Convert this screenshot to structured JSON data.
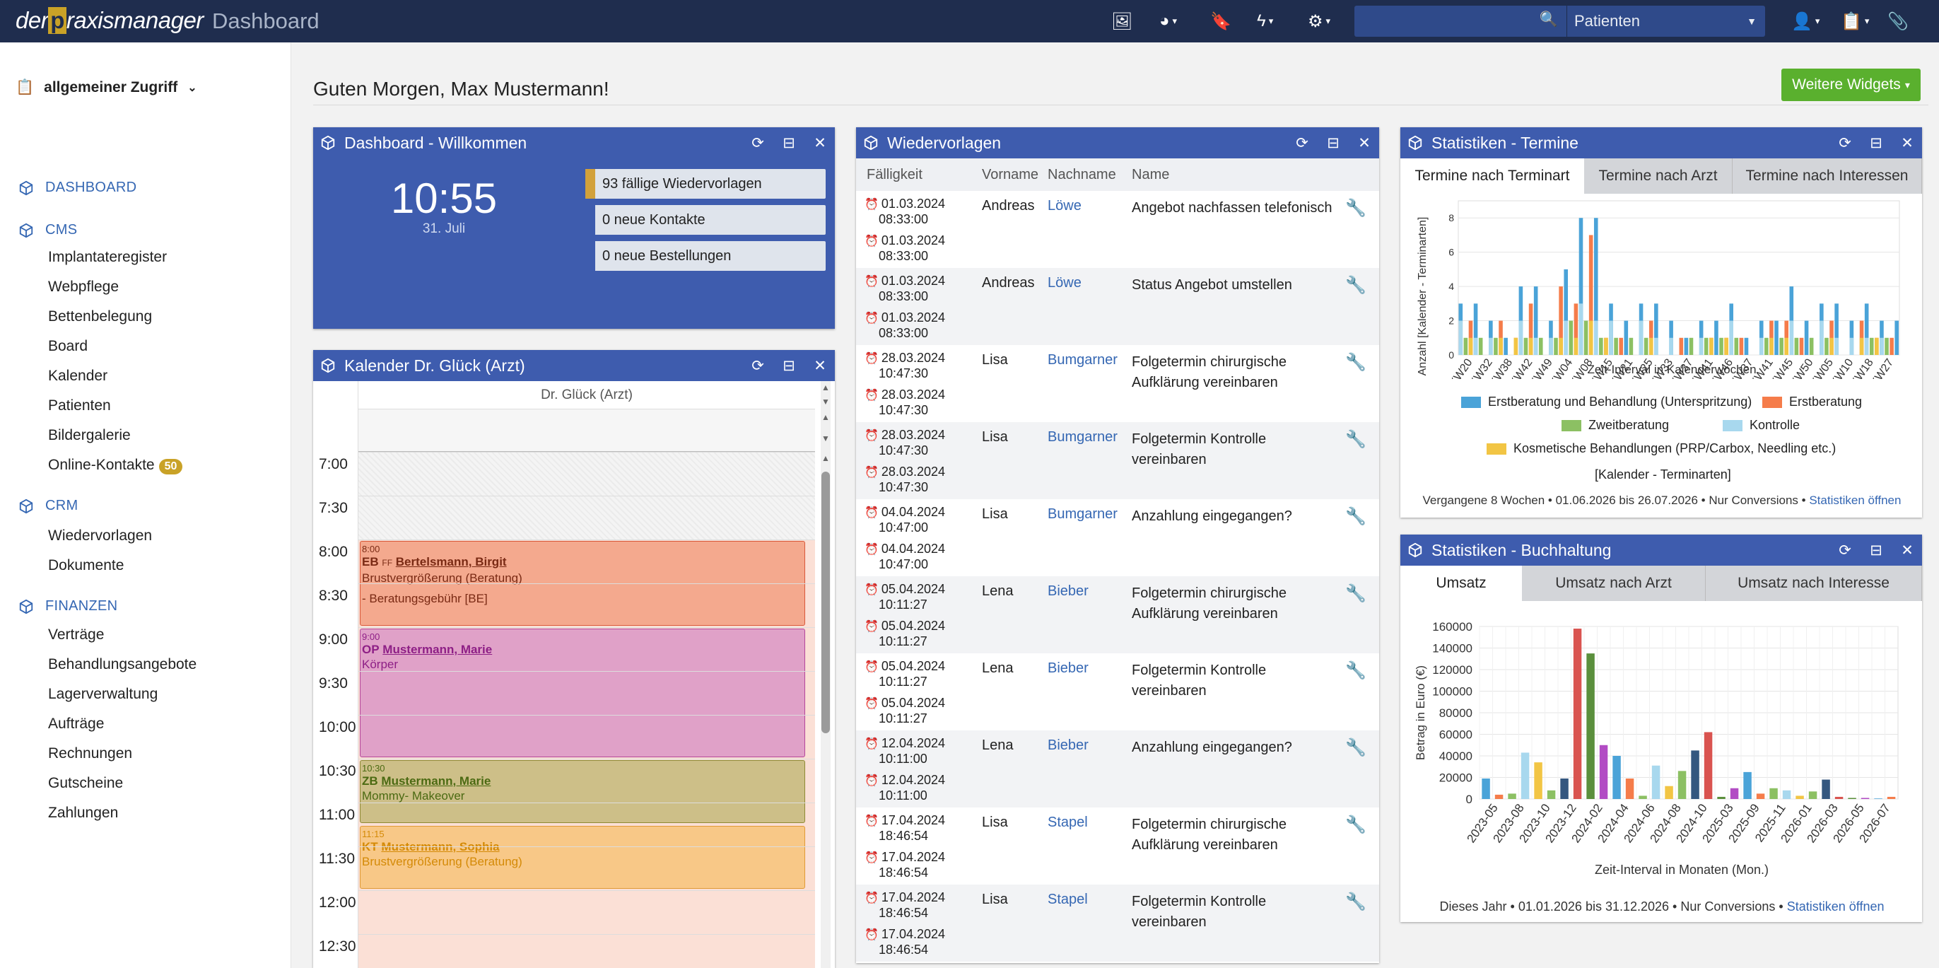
{
  "app": {
    "logo_pre": "der",
    "logo_p": "p",
    "logo_post": "raxismanager",
    "title": "Dashboard"
  },
  "topbar": {
    "search_placeholder": "",
    "select_value": "Patienten",
    "icons": [
      "image-icon",
      "pie-chart-icon",
      "bookmark-icon",
      "bolt-icon",
      "gear-icon",
      "user-icon",
      "clipboard-icon",
      "paperclip-icon"
    ]
  },
  "sidebar": {
    "context": "allgemeiner Zugriff",
    "sections": [
      {
        "label": "DASHBOARD",
        "items": []
      },
      {
        "label": "CMS",
        "items": [
          "Implantateregister",
          "Webpflege",
          "Bettenbelegung",
          "Board",
          "Kalender",
          "Patienten",
          "Bildergalerie",
          "Online-Kontakte"
        ]
      },
      {
        "label": "CRM",
        "items": [
          "Wiedervorlagen",
          "Dokumente"
        ]
      },
      {
        "label": "FINANZEN",
        "items": [
          "Verträge",
          "Behandlungsangebote",
          "Lagerverwaltung",
          "Aufträge",
          "Rechnungen",
          "Gutscheine",
          "Zahlungen"
        ]
      }
    ],
    "online_badge": "50"
  },
  "greeting": "Guten Morgen, Max Mustermann!",
  "more_widgets": "Weitere Widgets",
  "welcome": {
    "title": "Dashboard - Willkommen",
    "time": "10:55",
    "date": "31. Juli",
    "stats": [
      "93 fällige Wiedervorlagen",
      "0 neue Kontakte",
      "0 neue Bestellungen"
    ]
  },
  "calendar": {
    "title": "Kalender Dr. Glück (Arzt)",
    "column": "Dr. Glück (Arzt)",
    "times": [
      "7:00",
      "7:30",
      "8:00",
      "8:30",
      "9:00",
      "9:30",
      "10:00",
      "10:30",
      "11:00",
      "11:30",
      "12:00",
      "12:30"
    ],
    "events": [
      {
        "time": "8:00",
        "code": "EB",
        "flag": "FF",
        "name": "Bertelsmann, Birgit",
        "desc": "Brustvergrößerung (Beratung)",
        "extra": "- Beratungsgebühr [BE]",
        "color": "#f4a98e",
        "border": "#d9593a",
        "text": "#7a2a14"
      },
      {
        "time": "9:00",
        "code": "OP",
        "flag": "",
        "name": "Mustermann, Marie",
        "desc": "Körper",
        "extra": "",
        "color": "#e0a1c8",
        "border": "#b5479a",
        "text": "#8e1f86"
      },
      {
        "time": "10:30",
        "code": "ZB",
        "flag": "",
        "name": "Mustermann, Marie",
        "desc": "Mommy- Makeover",
        "extra": "",
        "color": "#cdbf88",
        "border": "#8f8a35",
        "text": "#4b6a12"
      },
      {
        "time": "11:15",
        "code": "KT",
        "flag": "",
        "name": "Mustermann, Sophia",
        "desc": "Brustvergrößerung (Beratung)",
        "extra": "",
        "color": "#f8c887",
        "border": "#e09a36",
        "text": "#d48a07"
      }
    ]
  },
  "followups": {
    "title": "Wiedervorlagen",
    "columns": [
      "Fälligkeit",
      "Vorname",
      "Nachname",
      "Name"
    ],
    "rows": [
      {
        "d1": "01.03.2024",
        "t1": "08:33:00",
        "d2": "01.03.2024",
        "t2": "08:33:00",
        "first": "Andreas",
        "last": "Löwe",
        "name": "Angebot nachfassen telefonisch"
      },
      {
        "d1": "01.03.2024",
        "t1": "08:33:00",
        "d2": "01.03.2024",
        "t2": "08:33:00",
        "first": "Andreas",
        "last": "Löwe",
        "name": "Status Angebot umstellen"
      },
      {
        "d1": "28.03.2024",
        "t1": "10:47:30",
        "d2": "28.03.2024",
        "t2": "10:47:30",
        "first": "Lisa",
        "last": "Bumgarner",
        "name": "Folgetermin chirurgische Aufklärung vereinbaren"
      },
      {
        "d1": "28.03.2024",
        "t1": "10:47:30",
        "d2": "28.03.2024",
        "t2": "10:47:30",
        "first": "Lisa",
        "last": "Bumgarner",
        "name": "Folgetermin Kontrolle vereinbaren"
      },
      {
        "d1": "04.04.2024",
        "t1": "10:47:00",
        "d2": "04.04.2024",
        "t2": "10:47:00",
        "first": "Lisa",
        "last": "Bumgarner",
        "name": "Anzahlung eingegangen?"
      },
      {
        "d1": "05.04.2024",
        "t1": "10:11:27",
        "d2": "05.04.2024",
        "t2": "10:11:27",
        "first": "Lena",
        "last": "Bieber",
        "name": "Folgetermin chirurgische Aufklärung vereinbaren"
      },
      {
        "d1": "05.04.2024",
        "t1": "10:11:27",
        "d2": "05.04.2024",
        "t2": "10:11:27",
        "first": "Lena",
        "last": "Bieber",
        "name": "Folgetermin Kontrolle vereinbaren"
      },
      {
        "d1": "12.04.2024",
        "t1": "10:11:00",
        "d2": "12.04.2024",
        "t2": "10:11:00",
        "first": "Lena",
        "last": "Bieber",
        "name": "Anzahlung eingegangen?"
      },
      {
        "d1": "17.04.2024",
        "t1": "18:46:54",
        "d2": "17.04.2024",
        "t2": "18:46:54",
        "first": "Lisa",
        "last": "Stapel",
        "name": "Folgetermin chirurgische Aufklärung vereinbaren"
      },
      {
        "d1": "17.04.2024",
        "t1": "18:46:54",
        "d2": "17.04.2024",
        "t2": "18:46:54",
        "first": "Lisa",
        "last": "Stapel",
        "name": "Folgetermin Kontrolle vereinbaren"
      }
    ]
  },
  "stats_appointments": {
    "title": "Statistiken - Termine",
    "tabs": [
      "Termine nach Terminart",
      "Termine nach Arzt",
      "Termine nach Interessen"
    ],
    "footer": "Vergangene 8 Wochen • 01.06.2026 bis 26.07.2026 • Nur Conversions •",
    "footer_link": "Statistiken öffnen",
    "legend_title": "[Kalender - Terminarten]",
    "legend": [
      {
        "name": "Erstberatung und Behandlung (Unterspritzung)",
        "color": "#4aa3d8"
      },
      {
        "name": "Erstberatung",
        "color": "#f57c4a"
      },
      {
        "name": "Zweitberatung",
        "color": "#8cc063"
      },
      {
        "name": "Kontrolle",
        "color": "#a8d8ee"
      },
      {
        "name": "Kosmetische Behandlungen (PRP/Carbox, Needling etc.)",
        "color": "#f2c544"
      }
    ]
  },
  "stats_accounting": {
    "title": "Statistiken - Buchhaltung",
    "tabs": [
      "Umsatz",
      "Umsatz nach Arzt",
      "Umsatz nach Interesse"
    ],
    "footer": "Dieses Jahr • 01.01.2026 bis 31.12.2026 • Nur Conversions •",
    "footer_link": "Statistiken öffnen"
  },
  "chart_data": [
    {
      "type": "bar",
      "title": "",
      "xlabel": "Zeit-Interval in Kalenderwochen",
      "ylabel": "Anzahl [Kalender - Terminarten]",
      "ylim": [
        0,
        9
      ],
      "yticks": [
        0,
        2,
        4,
        6,
        8
      ],
      "categories": [
        "2023 KW20",
        "2023 KW32",
        "2023 KW38",
        "2023 KW42",
        "2023 KW49",
        "2024 KW04",
        "2024 KW08",
        "2024 KW15",
        "2024 KW21",
        "2024 KW25",
        "2024 KW33",
        "2024 KW37",
        "2024 KW41",
        "2024 KW46",
        "2025 KW37",
        "2025 KW41",
        "2025 KW45",
        "2025 KW50",
        "2026 KW05",
        "2026 KW10",
        "2026 KW18",
        "2026 KW27"
      ],
      "series": [
        {
          "name": "Erstberatung und Behandlung (Unterspritzung)",
          "values": [
            3,
            2,
            1,
            4,
            2,
            5,
            8,
            3,
            2,
            3,
            2,
            1,
            2,
            3,
            1,
            2,
            4,
            2,
            3,
            2,
            3,
            2
          ]
        },
        {
          "name": "Erstberatung",
          "values": [
            2,
            1,
            2,
            3,
            1,
            4,
            7,
            2,
            1,
            2,
            1,
            1,
            1,
            2,
            1,
            2,
            3,
            1,
            2,
            1,
            2,
            1
          ]
        },
        {
          "name": "Zweitberatung",
          "values": [
            1,
            1,
            0,
            1,
            1,
            2,
            2,
            1,
            1,
            1,
            0,
            1,
            1,
            1,
            0,
            1,
            1,
            1,
            1,
            0,
            1,
            1
          ]
        },
        {
          "name": "Kontrolle",
          "values": [
            2,
            1,
            1,
            2,
            1,
            3,
            3,
            2,
            1,
            2,
            1,
            1,
            1,
            2,
            1,
            1,
            2,
            1,
            2,
            1,
            2,
            1
          ]
        },
        {
          "name": "Kosmetische Behandlungen (PRP/Carbox, Needling etc.)",
          "values": [
            1,
            0,
            1,
            1,
            0,
            1,
            2,
            1,
            0,
            1,
            0,
            0,
            1,
            1,
            0,
            1,
            1,
            0,
            1,
            0,
            1,
            0
          ]
        }
      ]
    },
    {
      "type": "bar",
      "title": "",
      "xlabel": "Zeit-Interval in Monaten (Mon.)",
      "ylabel": "Betrag in Euro (€)",
      "ylim": [
        0,
        160000
      ],
      "yticks": [
        0,
        20000,
        40000,
        60000,
        80000,
        100000,
        120000,
        140000,
        160000
      ],
      "categories": [
        "2023-05",
        "2023-06",
        "2023-07",
        "2023-08",
        "2023-09",
        "2023-10",
        "2023-11",
        "2023-12",
        "2024-01",
        "2024-02",
        "2024-03",
        "2024-04",
        "2024-05",
        "2024-06",
        "2024-07",
        "2024-08",
        "2024-09",
        "2024-10",
        "2024-11",
        "2025-03",
        "2025-04",
        "2025-09",
        "2025-10",
        "2025-11",
        "2025-12",
        "2026-01",
        "2026-02",
        "2026-03",
        "2026-04",
        "2026-05",
        "2026-06",
        "2026-07"
      ],
      "tick_labels": [
        "2023-05",
        "2023-08",
        "2023-10",
        "2023-12",
        "2024-02",
        "2024-04",
        "2024-06",
        "2024-08",
        "2024-10",
        "2025-03",
        "2025-09",
        "2025-11",
        "2026-01",
        "2026-03",
        "2026-05",
        "2026-07"
      ],
      "values": [
        19000,
        4000,
        5000,
        43000,
        34000,
        8000,
        19000,
        158000,
        135000,
        50000,
        40000,
        19000,
        3000,
        31000,
        12000,
        26000,
        45000,
        62000,
        2000,
        10000,
        25000,
        5000,
        10000,
        8000,
        3000,
        7000,
        18000,
        2000,
        1000,
        1000,
        500,
        2000
      ],
      "colors": [
        "#4aa3d8",
        "#f57c4a",
        "#8cc063",
        "#a8d8ee",
        "#f2c544",
        "#8cc063",
        "#34577f",
        "#d9534f",
        "#5a8f3c",
        "#b24cc4",
        "#4aa3d8",
        "#f57c4a",
        "#8cc063",
        "#a8d8ee",
        "#f2c544",
        "#8cc063",
        "#34577f",
        "#d9534f",
        "#5a8f3c",
        "#b24cc4",
        "#4aa3d8",
        "#f57c4a",
        "#8cc063",
        "#a8d8ee",
        "#f2c544",
        "#8cc063",
        "#34577f",
        "#d9534f",
        "#5a8f3c",
        "#b24cc4",
        "#4aa3d8",
        "#f57c4a"
      ]
    }
  ]
}
